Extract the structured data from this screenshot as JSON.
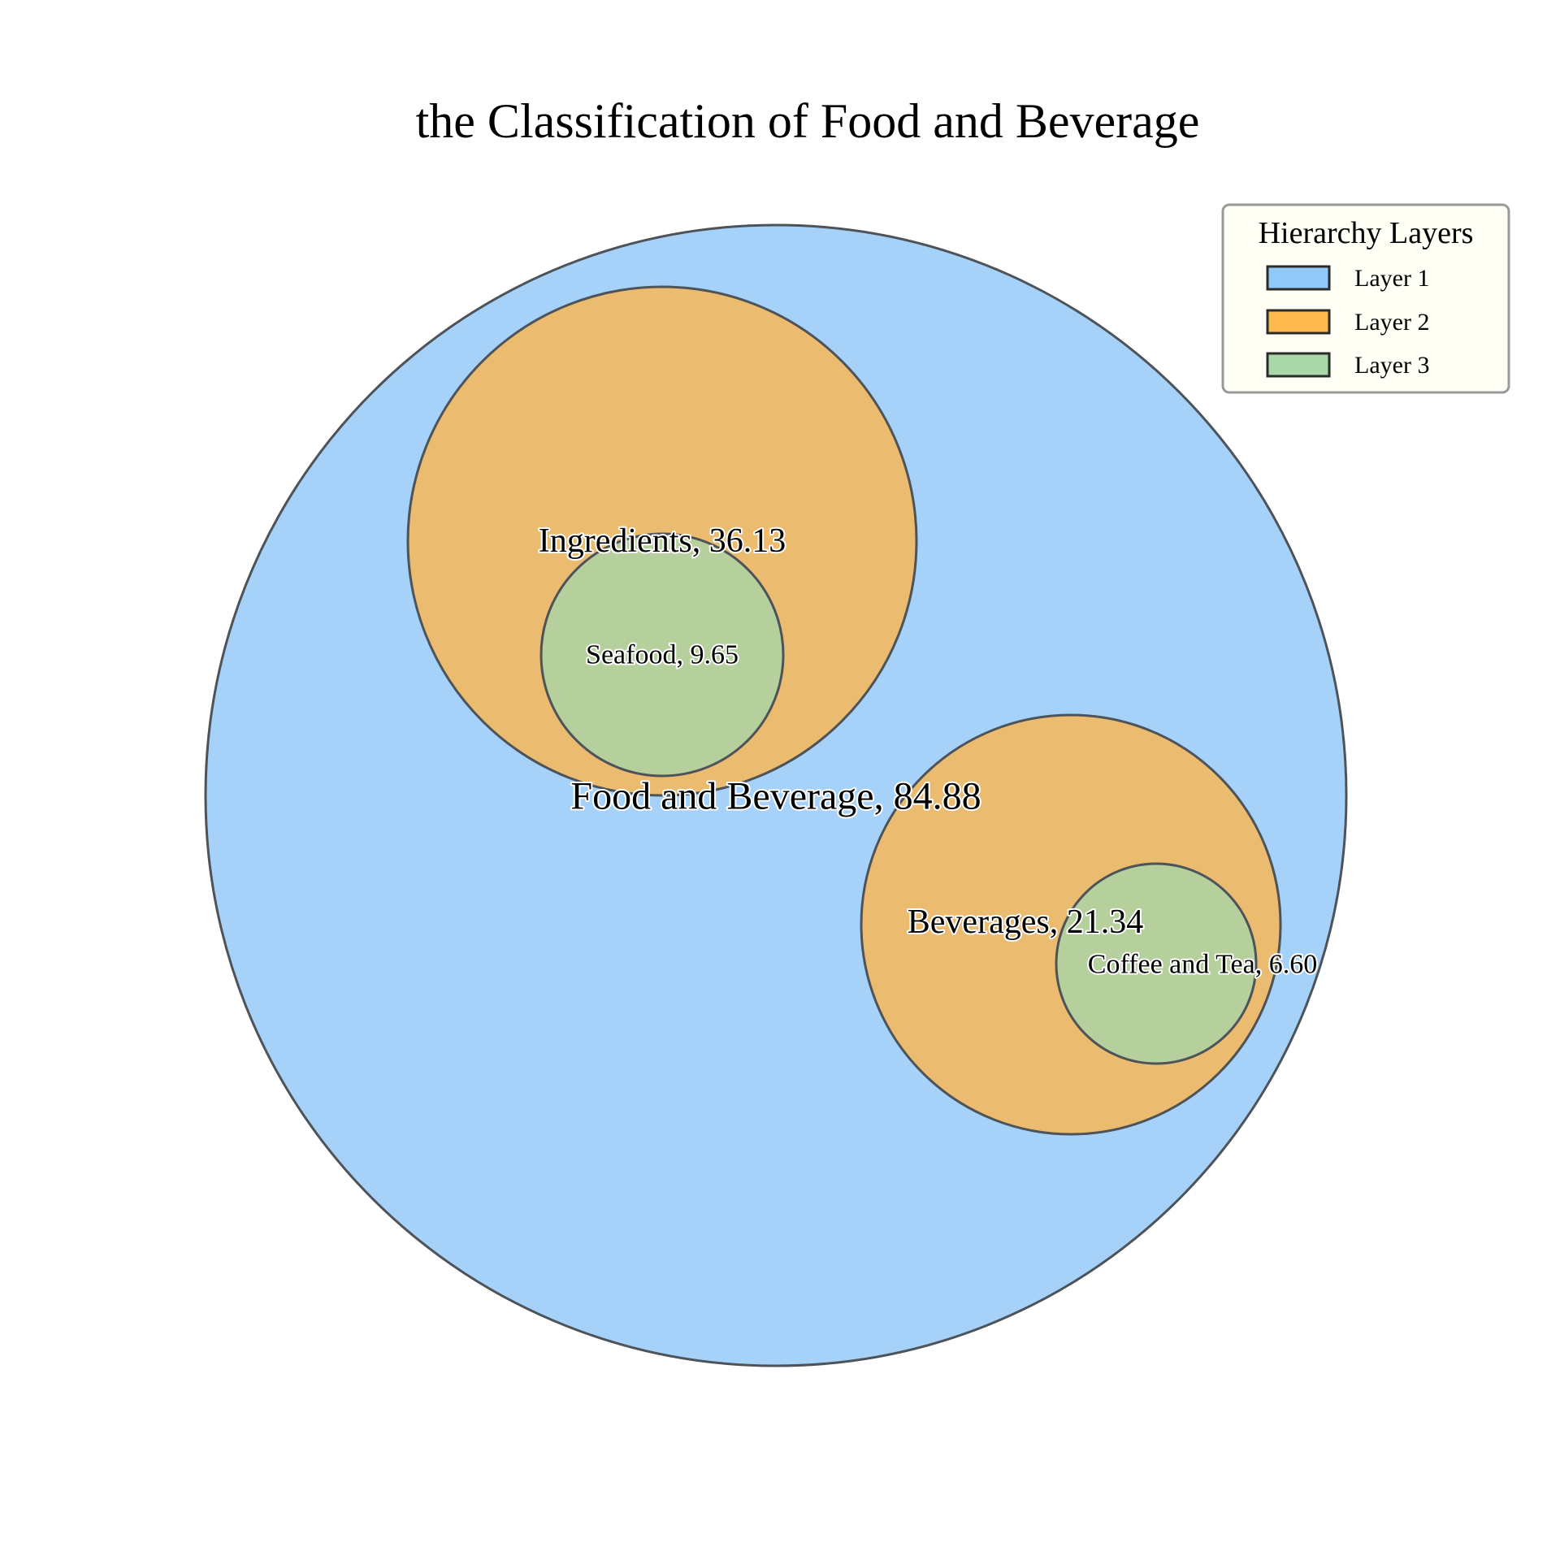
{
  "chart_data": {
    "type": "circle-packing",
    "title": "the Classification of Food and Beverage",
    "legend": {
      "title": "Hierarchy Layers",
      "placement": "top-right",
      "items": [
        {
          "label": "Layer 1",
          "color": "#90c8f8"
        },
        {
          "label": "Layer 2",
          "color": "#ffb84d"
        },
        {
          "label": "Layer 3",
          "color": "#a8d8a8"
        }
      ]
    },
    "nodes": [
      {
        "name": "Food and Beverage",
        "value": 84.88,
        "layer": 1,
        "label": "Food and Beverage, 84.88"
      },
      {
        "name": "Ingredients",
        "value": 36.13,
        "layer": 2,
        "parent": "Food and Beverage",
        "label": "Ingredients, 36.13"
      },
      {
        "name": "Beverages",
        "value": 21.34,
        "layer": 2,
        "parent": "Food and Beverage",
        "label": "Beverages, 21.34"
      },
      {
        "name": "Seafood",
        "value": 9.65,
        "layer": 3,
        "parent": "Ingredients",
        "label": "Seafood, 9.65"
      },
      {
        "name": "Coffee and Tea",
        "value": 6.6,
        "layer": 3,
        "parent": "Beverages",
        "label": "Coffee and Tea, 6.60"
      }
    ],
    "fill_colors": {
      "1": "#a6d2f9",
      "2": "#ebbb6f",
      "3": "#b5d09c"
    },
    "edge_color": "#4d5358"
  }
}
